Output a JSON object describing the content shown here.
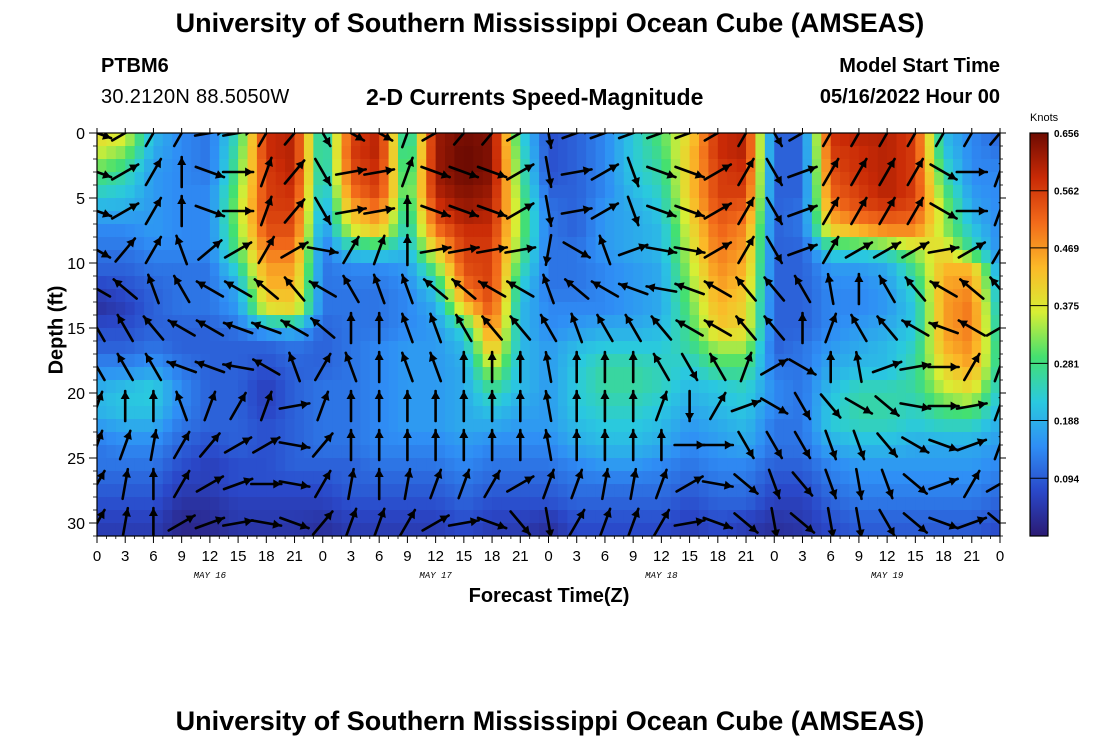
{
  "header": {
    "title_top": "University of Southern Mississippi Ocean Cube (AMSEAS)",
    "title_bottom": "University of Southern Mississippi Ocean Cube (AMSEAS)",
    "station": "PTBM6",
    "coords": "30.2120N  88.5050W",
    "model_label": "Model Start Time",
    "model_time": "05/16/2022 Hour 00"
  },
  "chart_data": {
    "type": "heatmap",
    "title": "2-D Currents Speed-Magnitude",
    "xlabel": "Forecast Time(Z)",
    "ylabel": "Depth (ft)",
    "units": "Knots",
    "x_range_hours": [
      0,
      96
    ],
    "y_range_ft": [
      0,
      31
    ],
    "y_inverted": true,
    "x_ticks": [
      "0",
      "3",
      "6",
      "9",
      "12",
      "15",
      "18",
      "21",
      "0",
      "3",
      "6",
      "9",
      "12",
      "15",
      "18",
      "21",
      "0",
      "3",
      "6",
      "9",
      "12",
      "15",
      "18",
      "21",
      "0",
      "3",
      "6",
      "9",
      "12",
      "15",
      "18",
      "21",
      "0"
    ],
    "y_ticks": [
      "0",
      "5",
      "10",
      "15",
      "20",
      "25",
      "30"
    ],
    "y_tick_values": [
      0,
      5,
      10,
      15,
      20,
      25,
      30
    ],
    "day_labels": [
      {
        "text": "MAY 16",
        "hour": 12
      },
      {
        "text": "MAY 17",
        "hour": 36
      },
      {
        "text": "MAY 18",
        "hour": 60
      },
      {
        "text": "MAY 19",
        "hour": 84
      }
    ],
    "colorbar": {
      "min": 0.0,
      "max": 0.656,
      "tick_labels": [
        "0.656",
        "0.562",
        "0.469",
        "0.375",
        "0.281",
        "0.188",
        "0.094"
      ],
      "tick_values": [
        0.656,
        0.562,
        0.469,
        0.375,
        0.281,
        0.188,
        0.094
      ],
      "colors": [
        "#2b1a73",
        "#2a48c9",
        "#2f8ef5",
        "#2ac9df",
        "#44e070",
        "#d8ee34",
        "#fbb928",
        "#f26a1a",
        "#c92a06",
        "#6e0b02"
      ]
    },
    "depth_levels_ft": [
      0,
      1.5,
      3,
      4.5,
      6,
      7.5,
      9,
      10.5,
      12,
      13.5,
      15,
      16.5,
      18,
      19.5,
      21,
      22.5,
      24,
      25.5,
      27,
      28.5,
      30,
      31
    ],
    "time_hours": [
      0,
      3,
      6,
      9,
      12,
      15,
      18,
      21,
      24,
      27,
      30,
      33,
      36,
      39,
      42,
      45,
      48,
      51,
      54,
      57,
      60,
      63,
      66,
      69,
      72,
      75,
      78,
      81,
      84,
      87,
      90,
      93,
      96
    ],
    "speed_knots": [
      [
        0.4,
        0.38,
        0.2,
        0.14,
        0.12,
        0.26,
        0.58,
        0.6,
        0.2,
        0.55,
        0.6,
        0.2,
        0.62,
        0.65,
        0.64,
        0.24,
        0.08,
        0.1,
        0.14,
        0.22,
        0.3,
        0.4,
        0.58,
        0.6,
        0.1,
        0.1,
        0.58,
        0.6,
        0.6,
        0.56,
        0.2,
        0.14,
        0.1
      ],
      [
        0.36,
        0.32,
        0.18,
        0.14,
        0.12,
        0.28,
        0.58,
        0.6,
        0.2,
        0.56,
        0.6,
        0.22,
        0.62,
        0.66,
        0.64,
        0.26,
        0.08,
        0.1,
        0.14,
        0.22,
        0.28,
        0.42,
        0.58,
        0.6,
        0.1,
        0.1,
        0.56,
        0.58,
        0.6,
        0.56,
        0.22,
        0.14,
        0.12
      ],
      [
        0.3,
        0.26,
        0.16,
        0.14,
        0.12,
        0.3,
        0.56,
        0.6,
        0.2,
        0.54,
        0.58,
        0.24,
        0.62,
        0.66,
        0.64,
        0.28,
        0.08,
        0.1,
        0.14,
        0.22,
        0.26,
        0.42,
        0.56,
        0.58,
        0.1,
        0.1,
        0.54,
        0.58,
        0.6,
        0.56,
        0.26,
        0.14,
        0.14
      ],
      [
        0.24,
        0.22,
        0.16,
        0.14,
        0.14,
        0.32,
        0.56,
        0.58,
        0.18,
        0.5,
        0.56,
        0.26,
        0.6,
        0.64,
        0.62,
        0.3,
        0.1,
        0.1,
        0.14,
        0.2,
        0.24,
        0.42,
        0.56,
        0.56,
        0.1,
        0.1,
        0.52,
        0.56,
        0.6,
        0.56,
        0.3,
        0.16,
        0.14
      ],
      [
        0.18,
        0.18,
        0.16,
        0.14,
        0.14,
        0.34,
        0.56,
        0.56,
        0.16,
        0.44,
        0.5,
        0.24,
        0.56,
        0.62,
        0.6,
        0.32,
        0.12,
        0.1,
        0.16,
        0.18,
        0.22,
        0.4,
        0.54,
        0.52,
        0.1,
        0.12,
        0.48,
        0.54,
        0.56,
        0.54,
        0.34,
        0.18,
        0.14
      ],
      [
        0.14,
        0.14,
        0.16,
        0.14,
        0.14,
        0.32,
        0.54,
        0.54,
        0.14,
        0.36,
        0.42,
        0.22,
        0.5,
        0.58,
        0.58,
        0.32,
        0.12,
        0.1,
        0.16,
        0.18,
        0.2,
        0.38,
        0.52,
        0.48,
        0.1,
        0.12,
        0.4,
        0.44,
        0.48,
        0.48,
        0.34,
        0.22,
        0.14
      ],
      [
        0.12,
        0.12,
        0.14,
        0.14,
        0.14,
        0.3,
        0.5,
        0.5,
        0.12,
        0.22,
        0.24,
        0.2,
        0.4,
        0.56,
        0.56,
        0.3,
        0.12,
        0.12,
        0.16,
        0.18,
        0.2,
        0.36,
        0.5,
        0.46,
        0.1,
        0.1,
        0.24,
        0.24,
        0.26,
        0.34,
        0.4,
        0.26,
        0.14
      ],
      [
        0.1,
        0.1,
        0.12,
        0.12,
        0.12,
        0.24,
        0.46,
        0.46,
        0.12,
        0.14,
        0.14,
        0.16,
        0.3,
        0.54,
        0.56,
        0.26,
        0.12,
        0.12,
        0.14,
        0.16,
        0.18,
        0.34,
        0.48,
        0.44,
        0.1,
        0.1,
        0.16,
        0.16,
        0.18,
        0.28,
        0.44,
        0.44,
        0.16
      ],
      [
        0.06,
        0.08,
        0.1,
        0.12,
        0.12,
        0.18,
        0.44,
        0.44,
        0.12,
        0.12,
        0.12,
        0.14,
        0.22,
        0.5,
        0.56,
        0.22,
        0.12,
        0.12,
        0.14,
        0.16,
        0.18,
        0.32,
        0.46,
        0.42,
        0.1,
        0.1,
        0.14,
        0.14,
        0.16,
        0.24,
        0.46,
        0.48,
        0.18
      ],
      [
        0.04,
        0.06,
        0.1,
        0.12,
        0.12,
        0.16,
        0.38,
        0.4,
        0.12,
        0.12,
        0.12,
        0.14,
        0.18,
        0.4,
        0.54,
        0.2,
        0.14,
        0.14,
        0.14,
        0.16,
        0.18,
        0.3,
        0.44,
        0.4,
        0.1,
        0.1,
        0.14,
        0.14,
        0.16,
        0.22,
        0.46,
        0.5,
        0.2
      ],
      [
        0.08,
        0.08,
        0.1,
        0.1,
        0.1,
        0.12,
        0.18,
        0.2,
        0.1,
        0.12,
        0.12,
        0.14,
        0.16,
        0.24,
        0.5,
        0.2,
        0.14,
        0.16,
        0.18,
        0.18,
        0.2,
        0.28,
        0.42,
        0.4,
        0.1,
        0.1,
        0.14,
        0.16,
        0.18,
        0.22,
        0.46,
        0.5,
        0.22
      ],
      [
        0.1,
        0.1,
        0.12,
        0.1,
        0.1,
        0.1,
        0.1,
        0.12,
        0.1,
        0.12,
        0.14,
        0.16,
        0.16,
        0.2,
        0.44,
        0.2,
        0.16,
        0.2,
        0.22,
        0.22,
        0.22,
        0.26,
        0.34,
        0.34,
        0.1,
        0.12,
        0.16,
        0.18,
        0.2,
        0.24,
        0.44,
        0.48,
        0.24
      ],
      [
        0.14,
        0.14,
        0.16,
        0.12,
        0.1,
        0.1,
        0.08,
        0.1,
        0.1,
        0.12,
        0.14,
        0.16,
        0.16,
        0.18,
        0.36,
        0.2,
        0.16,
        0.22,
        0.26,
        0.26,
        0.24,
        0.22,
        0.28,
        0.28,
        0.12,
        0.12,
        0.18,
        0.2,
        0.2,
        0.26,
        0.4,
        0.46,
        0.24
      ],
      [
        0.18,
        0.2,
        0.22,
        0.14,
        0.1,
        0.1,
        0.06,
        0.1,
        0.12,
        0.12,
        0.14,
        0.16,
        0.16,
        0.18,
        0.28,
        0.2,
        0.16,
        0.22,
        0.26,
        0.26,
        0.24,
        0.2,
        0.22,
        0.24,
        0.14,
        0.12,
        0.2,
        0.24,
        0.24,
        0.26,
        0.36,
        0.4,
        0.22
      ],
      [
        0.2,
        0.22,
        0.22,
        0.14,
        0.1,
        0.1,
        0.06,
        0.1,
        0.12,
        0.12,
        0.14,
        0.16,
        0.16,
        0.18,
        0.22,
        0.18,
        0.16,
        0.22,
        0.24,
        0.24,
        0.22,
        0.18,
        0.2,
        0.22,
        0.14,
        0.12,
        0.22,
        0.26,
        0.26,
        0.24,
        0.3,
        0.32,
        0.2
      ],
      [
        0.16,
        0.18,
        0.18,
        0.12,
        0.1,
        0.1,
        0.08,
        0.1,
        0.12,
        0.12,
        0.14,
        0.16,
        0.16,
        0.18,
        0.18,
        0.16,
        0.16,
        0.2,
        0.22,
        0.22,
        0.2,
        0.16,
        0.18,
        0.2,
        0.12,
        0.12,
        0.22,
        0.24,
        0.24,
        0.22,
        0.24,
        0.24,
        0.18
      ],
      [
        0.12,
        0.14,
        0.14,
        0.1,
        0.08,
        0.1,
        0.08,
        0.1,
        0.12,
        0.12,
        0.14,
        0.14,
        0.14,
        0.16,
        0.14,
        0.14,
        0.14,
        0.18,
        0.2,
        0.2,
        0.18,
        0.14,
        0.16,
        0.18,
        0.12,
        0.12,
        0.18,
        0.2,
        0.2,
        0.18,
        0.18,
        0.18,
        0.16
      ],
      [
        0.12,
        0.12,
        0.12,
        0.08,
        0.06,
        0.08,
        0.08,
        0.1,
        0.1,
        0.1,
        0.12,
        0.12,
        0.12,
        0.14,
        0.12,
        0.12,
        0.12,
        0.14,
        0.16,
        0.16,
        0.14,
        0.12,
        0.14,
        0.14,
        0.1,
        0.1,
        0.14,
        0.16,
        0.16,
        0.16,
        0.16,
        0.16,
        0.14
      ],
      [
        0.1,
        0.1,
        0.1,
        0.06,
        0.06,
        0.08,
        0.08,
        0.08,
        0.08,
        0.1,
        0.1,
        0.1,
        0.1,
        0.12,
        0.1,
        0.1,
        0.1,
        0.12,
        0.12,
        0.12,
        0.12,
        0.1,
        0.12,
        0.12,
        0.08,
        0.08,
        0.12,
        0.14,
        0.14,
        0.14,
        0.14,
        0.14,
        0.12
      ],
      [
        0.08,
        0.08,
        0.08,
        0.04,
        0.04,
        0.06,
        0.06,
        0.06,
        0.06,
        0.08,
        0.08,
        0.08,
        0.08,
        0.1,
        0.08,
        0.08,
        0.08,
        0.1,
        0.1,
        0.1,
        0.1,
        0.08,
        0.1,
        0.1,
        0.06,
        0.06,
        0.1,
        0.12,
        0.12,
        0.12,
        0.12,
        0.12,
        0.1
      ],
      [
        0.06,
        0.06,
        0.06,
        0.02,
        0.03,
        0.05,
        0.05,
        0.05,
        0.04,
        0.06,
        0.06,
        0.06,
        0.06,
        0.08,
        0.06,
        0.06,
        0.04,
        0.08,
        0.08,
        0.08,
        0.08,
        0.06,
        0.08,
        0.06,
        0.04,
        0.05,
        0.08,
        0.1,
        0.1,
        0.1,
        0.1,
        0.1,
        0.08
      ],
      [
        0.05,
        0.05,
        0.05,
        0.02,
        0.02,
        0.04,
        0.04,
        0.04,
        0.03,
        0.05,
        0.05,
        0.05,
        0.05,
        0.07,
        0.05,
        0.05,
        0.03,
        0.07,
        0.07,
        0.07,
        0.07,
        0.05,
        0.07,
        0.05,
        0.03,
        0.04,
        0.07,
        0.09,
        0.09,
        0.09,
        0.09,
        0.09,
        0.07
      ]
    ],
    "vector_times_hours": [
      0,
      3,
      6,
      9,
      12,
      15,
      18,
      21,
      24,
      27,
      30,
      33,
      36,
      39,
      42,
      45,
      48,
      51,
      54,
      57,
      60,
      63,
      66,
      69,
      72,
      75,
      78,
      81,
      84,
      87,
      90,
      93,
      96
    ],
    "vector_depths_ft": [
      0,
      3,
      6,
      9,
      12,
      15,
      18,
      21,
      24,
      27,
      30
    ],
    "vector_direction_deg": [
      [
        110,
        60,
        30,
        30,
        80,
        80,
        30,
        40,
        150,
        120,
        120,
        20,
        60,
        40,
        40,
        60,
        170,
        70,
        70,
        70,
        70,
        70,
        60,
        30,
        150,
        60,
        30,
        30,
        30,
        30,
        30,
        30,
        40
      ],
      [
        110,
        60,
        30,
        0,
        110,
        90,
        20,
        40,
        150,
        80,
        80,
        20,
        110,
        110,
        110,
        60,
        170,
        80,
        60,
        160,
        110,
        110,
        60,
        30,
        150,
        70,
        30,
        30,
        30,
        30,
        120,
        90,
        20
      ],
      [
        110,
        60,
        30,
        0,
        110,
        90,
        20,
        40,
        150,
        80,
        80,
        0,
        110,
        110,
        110,
        60,
        170,
        80,
        60,
        160,
        110,
        110,
        60,
        30,
        150,
        70,
        30,
        30,
        30,
        30,
        120,
        90,
        20
      ],
      [
        120,
        40,
        30,
        340,
        50,
        60,
        30,
        60,
        100,
        30,
        20,
        0,
        80,
        80,
        80,
        80,
        190,
        120,
        340,
        70,
        100,
        100,
        60,
        30,
        150,
        70,
        30,
        60,
        60,
        60,
        80,
        60,
        30
      ],
      [
        300,
        310,
        340,
        330,
        300,
        300,
        310,
        320,
        300,
        330,
        340,
        340,
        310,
        310,
        300,
        300,
        340,
        310,
        300,
        290,
        280,
        290,
        300,
        320,
        320,
        330,
        350,
        0,
        330,
        320,
        300,
        310,
        320
      ],
      [
        330,
        330,
        320,
        300,
        300,
        290,
        290,
        300,
        310,
        0,
        0,
        340,
        340,
        330,
        320,
        320,
        330,
        340,
        330,
        330,
        320,
        300,
        300,
        320,
        320,
        0,
        20,
        330,
        320,
        300,
        290,
        300,
        60
      ],
      [
        330,
        330,
        330,
        290,
        290,
        280,
        300,
        340,
        30,
        340,
        0,
        340,
        340,
        0,
        0,
        0,
        350,
        0,
        0,
        0,
        330,
        150,
        330,
        20,
        60,
        120,
        0,
        350,
        70,
        80,
        90,
        30,
        20
      ],
      [
        20,
        0,
        0,
        340,
        20,
        30,
        20,
        80,
        20,
        0,
        0,
        0,
        0,
        0,
        0,
        0,
        350,
        0,
        0,
        0,
        20,
        180,
        30,
        70,
        120,
        150,
        140,
        120,
        130,
        100,
        90,
        80,
        20
      ],
      [
        20,
        20,
        10,
        30,
        40,
        60,
        60,
        100,
        40,
        0,
        0,
        0,
        0,
        0,
        0,
        0,
        350,
        0,
        0,
        0,
        0,
        90,
        90,
        150,
        150,
        150,
        160,
        160,
        140,
        120,
        110,
        70,
        20
      ],
      [
        30,
        10,
        0,
        30,
        60,
        70,
        90,
        100,
        30,
        10,
        0,
        10,
        20,
        20,
        30,
        60,
        20,
        20,
        10,
        10,
        20,
        60,
        100,
        130,
        160,
        140,
        160,
        170,
        160,
        130,
        70,
        30,
        60
      ],
      [
        30,
        10,
        0,
        60,
        70,
        80,
        100,
        110,
        40,
        20,
        20,
        30,
        60,
        80,
        110,
        140,
        170,
        30,
        20,
        20,
        30,
        80,
        110,
        130,
        170,
        130,
        170,
        170,
        150,
        130,
        110,
        70,
        130
      ]
    ]
  }
}
